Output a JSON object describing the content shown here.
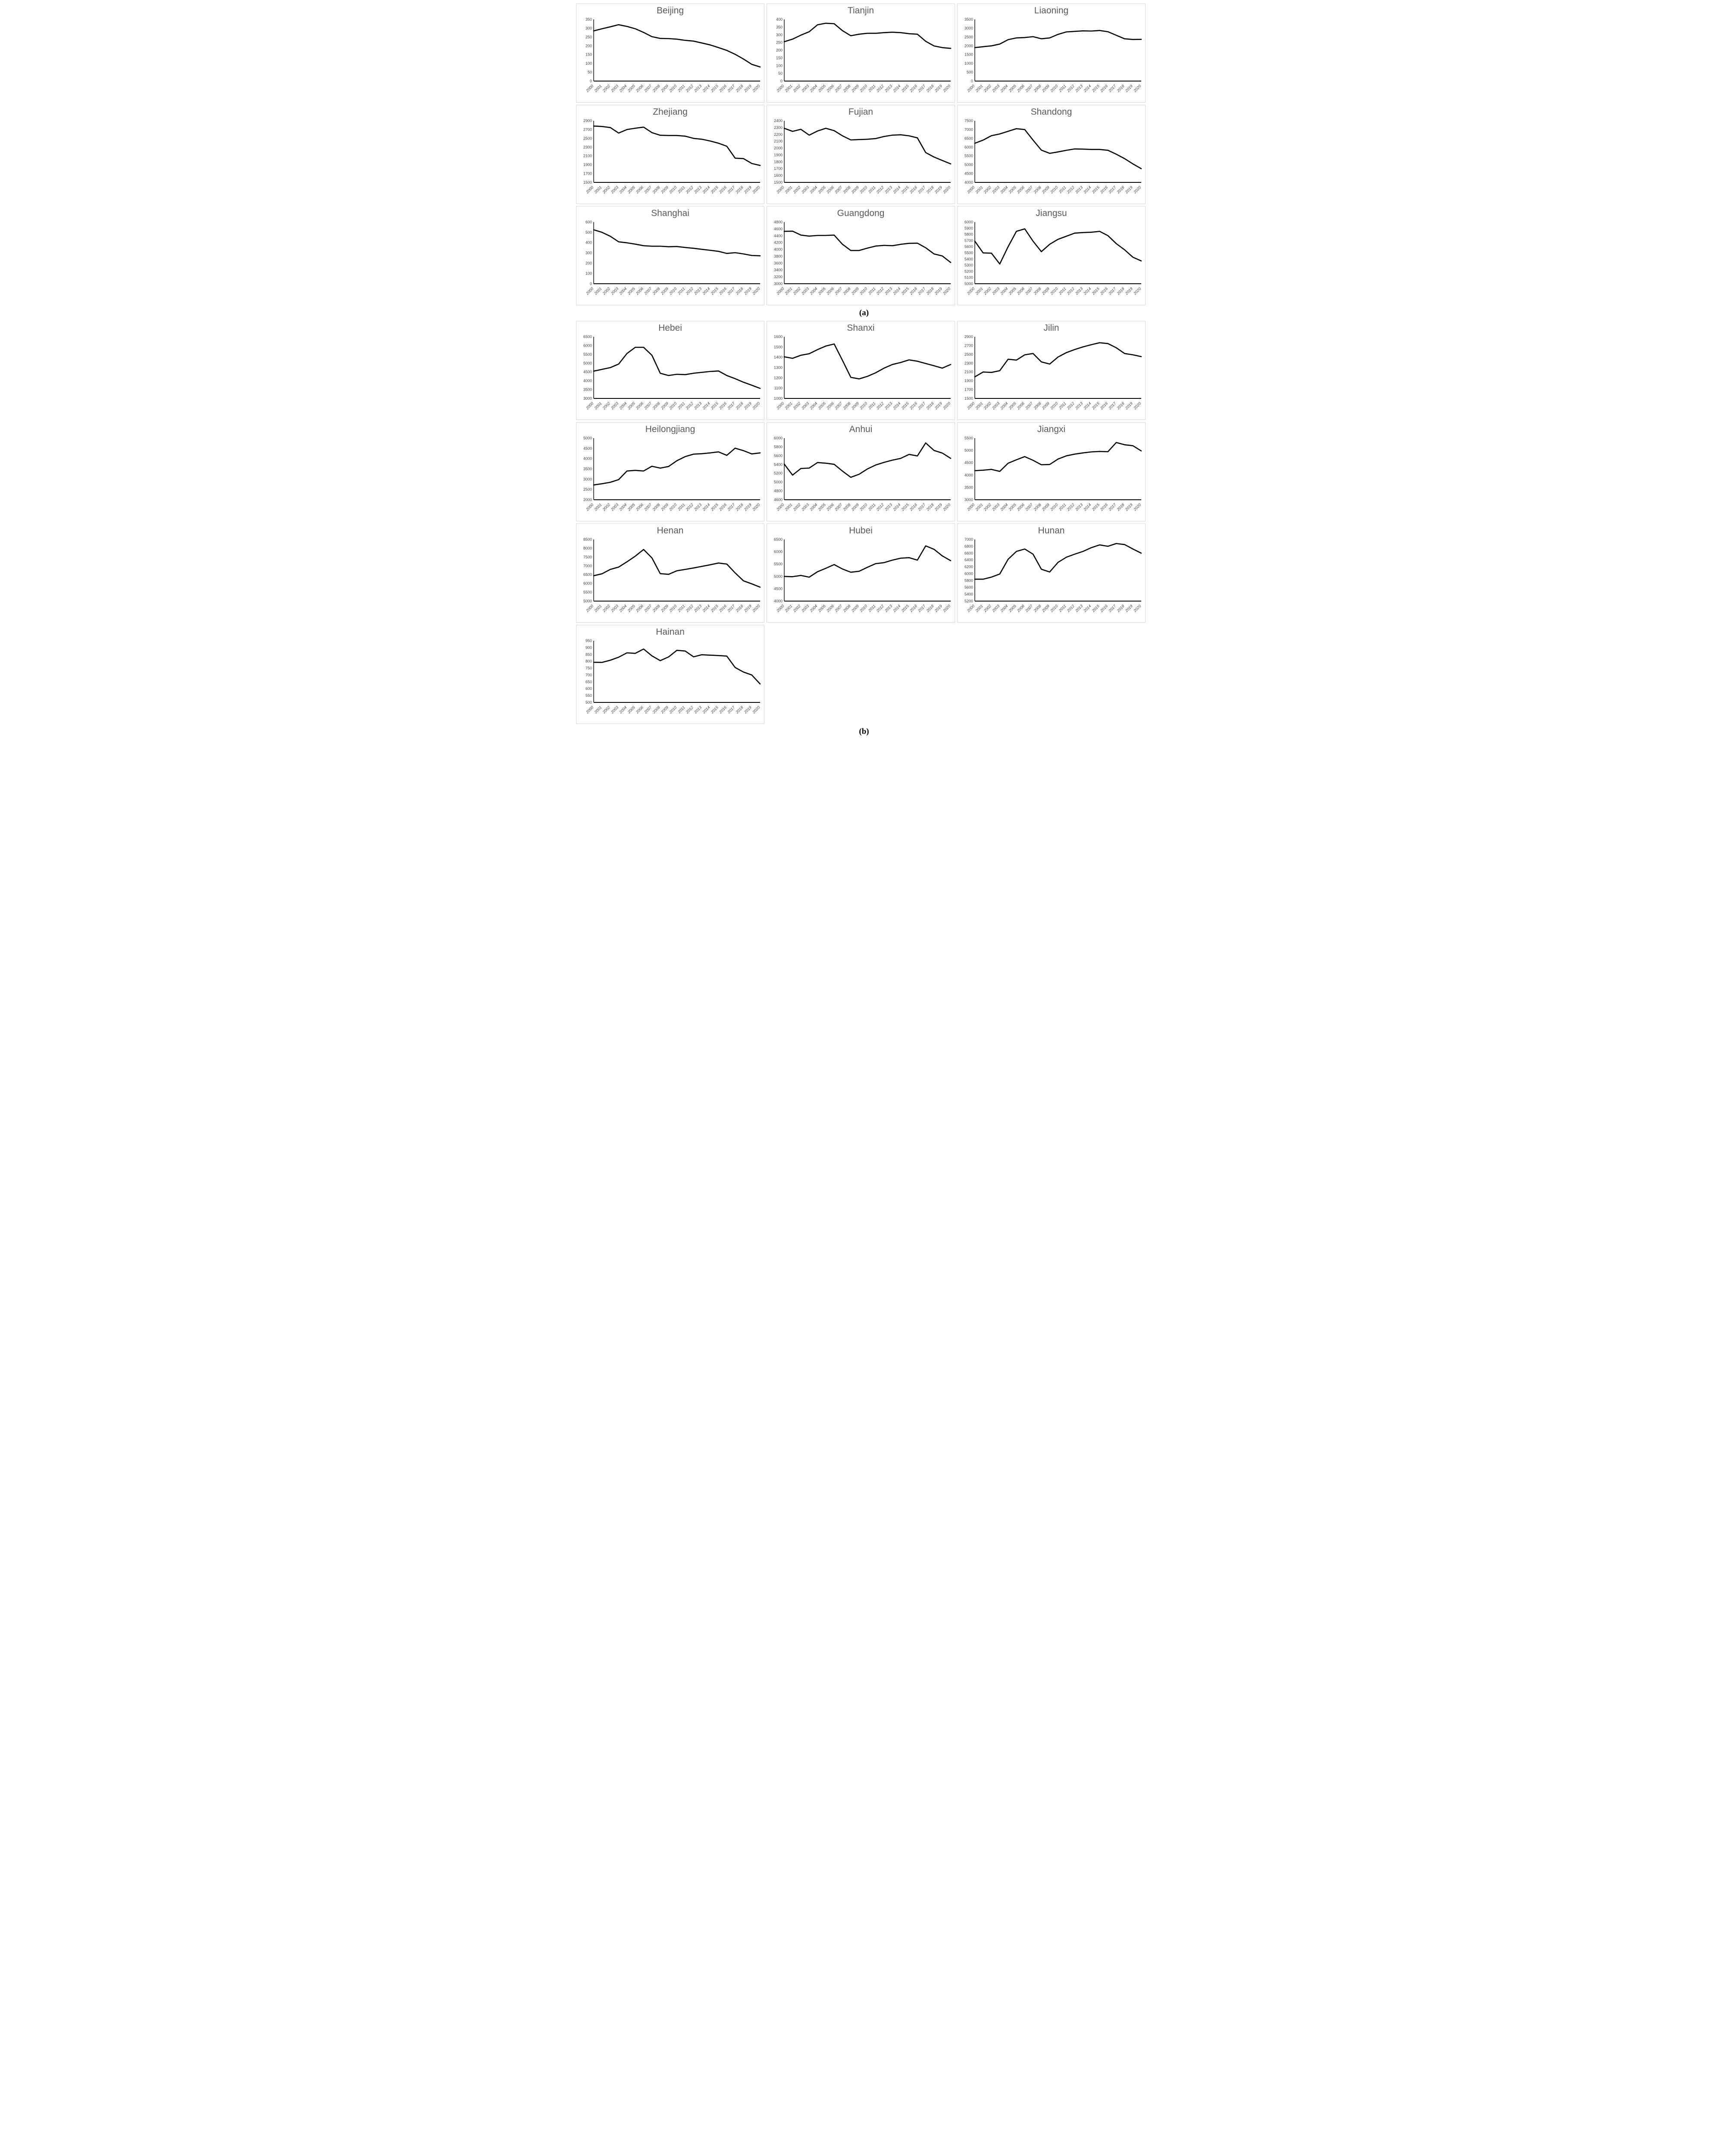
{
  "figure": {
    "panel_a_label": "(a)",
    "panel_b_label": "(b)"
  },
  "colors": {
    "line": "#000000",
    "title": "#595959",
    "axis": "#000000",
    "tick_text": "#404040",
    "box_border": "#d9d9d9",
    "background": "#ffffff"
  },
  "years": [
    2000,
    2001,
    2002,
    2003,
    2004,
    2005,
    2006,
    2007,
    2008,
    2009,
    2010,
    2011,
    2012,
    2013,
    2014,
    2015,
    2016,
    2017,
    2018,
    2019,
    2020
  ],
  "chart_data": [
    {
      "type": "line",
      "panel": "a",
      "title": "Beijing",
      "ylim": [
        0,
        350
      ],
      "ystep": 50,
      "grid": false,
      "legend": "none",
      "values": [
        285,
        297,
        308,
        320,
        310,
        297,
        276,
        252,
        242,
        241,
        238,
        231,
        227,
        216,
        205,
        190,
        174,
        152,
        125,
        95,
        80
      ]
    },
    {
      "type": "line",
      "panel": "a",
      "title": "Tianjin",
      "ylim": [
        0,
        400
      ],
      "ystep": 50,
      "grid": false,
      "legend": "none",
      "values": [
        255,
        272,
        298,
        320,
        365,
        375,
        372,
        327,
        294,
        304,
        310,
        310,
        314,
        317,
        314,
        307,
        304,
        258,
        228,
        217,
        212
      ]
    },
    {
      "type": "line",
      "panel": "a",
      "title": "Liaoning",
      "ylim": [
        0,
        3500
      ],
      "ystep": 500,
      "grid": false,
      "legend": "none",
      "values": [
        1900,
        1950,
        2000,
        2100,
        2350,
        2450,
        2470,
        2520,
        2400,
        2450,
        2650,
        2790,
        2820,
        2850,
        2840,
        2870,
        2800,
        2600,
        2400,
        2360,
        2370
      ]
    },
    {
      "type": "line",
      "panel": "a",
      "title": "Zhejiang",
      "ylim": [
        1500,
        2900
      ],
      "ystep": 200,
      "grid": false,
      "legend": "none",
      "values": [
        2780,
        2770,
        2745,
        2620,
        2700,
        2730,
        2755,
        2630,
        2570,
        2565,
        2565,
        2550,
        2500,
        2480,
        2440,
        2390,
        2320,
        2050,
        2040,
        1930,
        1885
      ]
    },
    {
      "type": "line",
      "panel": "a",
      "title": "Fujian",
      "ylim": [
        1500,
        2400
      ],
      "ystep": 100,
      "grid": false,
      "legend": "none",
      "values": [
        2290,
        2245,
        2275,
        2190,
        2250,
        2290,
        2255,
        2180,
        2120,
        2125,
        2130,
        2140,
        2170,
        2190,
        2195,
        2180,
        2150,
        1935,
        1870,
        1820,
        1770
      ]
    },
    {
      "type": "line",
      "panel": "a",
      "title": "Shandong",
      "ylim": [
        4000,
        7500
      ],
      "ystep": 500,
      "grid": false,
      "legend": "none",
      "values": [
        6220,
        6400,
        6650,
        6750,
        6900,
        7050,
        7000,
        6400,
        5830,
        5650,
        5730,
        5820,
        5900,
        5890,
        5870,
        5870,
        5820,
        5600,
        5350,
        5050,
        4780
      ]
    },
    {
      "type": "line",
      "panel": "a",
      "title": "Shanghai",
      "ylim": [
        0,
        600
      ],
      "ystep": 100,
      "grid": false,
      "legend": "none",
      "values": [
        525,
        500,
        462,
        408,
        398,
        385,
        370,
        365,
        365,
        360,
        362,
        353,
        345,
        335,
        325,
        315,
        295,
        302,
        290,
        275,
        272
      ]
    },
    {
      "type": "line",
      "panel": "a",
      "title": "Guangdong",
      "ylim": [
        3000,
        4800
      ],
      "ystep": 200,
      "grid": false,
      "legend": "none",
      "values": [
        4530,
        4535,
        4420,
        4390,
        4410,
        4410,
        4420,
        4150,
        3970,
        3970,
        4040,
        4100,
        4120,
        4110,
        4150,
        4180,
        4185,
        4050,
        3870,
        3810,
        3620
      ]
    },
    {
      "type": "line",
      "panel": "a",
      "title": "Jiangsu",
      "ylim": [
        5000,
        6000
      ],
      "ystep": 100,
      "grid": false,
      "legend": "none",
      "values": [
        5690,
        5500,
        5495,
        5320,
        5600,
        5850,
        5890,
        5690,
        5520,
        5640,
        5720,
        5770,
        5820,
        5830,
        5835,
        5850,
        5780,
        5650,
        5550,
        5430,
        5370
      ]
    },
    {
      "type": "line",
      "panel": "b",
      "title": "Hebei",
      "ylim": [
        3000,
        6500
      ],
      "ystep": 500,
      "grid": false,
      "legend": "none",
      "values": [
        4550,
        4650,
        4750,
        4950,
        5550,
        5900,
        5900,
        5450,
        4430,
        4300,
        4370,
        4350,
        4430,
        4480,
        4530,
        4560,
        4300,
        4120,
        3920,
        3750,
        3570
      ]
    },
    {
      "type": "line",
      "panel": "b",
      "title": "Shanxi",
      "ylim": [
        1000,
        1600
      ],
      "ystep": 100,
      "grid": false,
      "legend": "none",
      "values": [
        1405,
        1390,
        1420,
        1435,
        1475,
        1510,
        1530,
        1370,
        1205,
        1190,
        1215,
        1250,
        1295,
        1330,
        1350,
        1375,
        1362,
        1340,
        1318,
        1295,
        1330
      ]
    },
    {
      "type": "line",
      "panel": "b",
      "title": "Jilin",
      "ylim": [
        1500,
        2900
      ],
      "ystep": 200,
      "grid": false,
      "legend": "none",
      "values": [
        1990,
        2100,
        2090,
        2130,
        2390,
        2370,
        2490,
        2520,
        2330,
        2280,
        2440,
        2540,
        2610,
        2670,
        2720,
        2765,
        2745,
        2650,
        2520,
        2490,
        2450
      ]
    },
    {
      "type": "line",
      "panel": "b",
      "title": "Heilongjiang",
      "ylim": [
        2000,
        5000
      ],
      "ystep": 500,
      "grid": false,
      "legend": "none",
      "values": [
        2720,
        2780,
        2850,
        2980,
        3400,
        3430,
        3400,
        3630,
        3540,
        3620,
        3900,
        4100,
        4220,
        4240,
        4280,
        4330,
        4160,
        4510,
        4390,
        4230,
        4280
      ]
    },
    {
      "type": "line",
      "panel": "b",
      "title": "Anhui",
      "ylim": [
        4600,
        6000
      ],
      "ystep": 200,
      "grid": false,
      "legend": "none",
      "values": [
        5410,
        5160,
        5310,
        5320,
        5445,
        5430,
        5405,
        5250,
        5110,
        5180,
        5300,
        5390,
        5450,
        5500,
        5540,
        5630,
        5595,
        5890,
        5720,
        5660,
        5540
      ]
    },
    {
      "type": "line",
      "panel": "b",
      "title": "Jiangxi",
      "ylim": [
        3000,
        5500
      ],
      "ystep": 500,
      "grid": false,
      "legend": "none",
      "values": [
        4180,
        4200,
        4230,
        4150,
        4480,
        4620,
        4750,
        4600,
        4420,
        4430,
        4650,
        4780,
        4850,
        4900,
        4940,
        4960,
        4950,
        5320,
        5230,
        5190,
        4980
      ]
    },
    {
      "type": "line",
      "panel": "b",
      "title": "Henan",
      "ylim": [
        5000,
        8500
      ],
      "ystep": 500,
      "grid": false,
      "legend": "none",
      "values": [
        6440,
        6550,
        6800,
        6930,
        7230,
        7550,
        7930,
        7450,
        6560,
        6520,
        6720,
        6800,
        6880,
        6970,
        7060,
        7160,
        7100,
        6600,
        6150,
        5980,
        5790
      ]
    },
    {
      "type": "line",
      "panel": "b",
      "title": "Hubei",
      "ylim": [
        4000,
        6500
      ],
      "ystep": 500,
      "grid": false,
      "legend": "none",
      "values": [
        5000,
        4990,
        5040,
        4970,
        5190,
        5330,
        5480,
        5300,
        5170,
        5210,
        5370,
        5520,
        5560,
        5660,
        5740,
        5760,
        5660,
        6240,
        6100,
        5830,
        5640
      ]
    },
    {
      "type": "line",
      "panel": "b",
      "title": "Hunan",
      "ylim": [
        5200,
        7000
      ],
      "ystep": 200,
      "grid": false,
      "legend": "none",
      "values": [
        5840,
        5840,
        5900,
        5990,
        6420,
        6650,
        6720,
        6570,
        6130,
        6050,
        6330,
        6480,
        6570,
        6650,
        6760,
        6840,
        6800,
        6880,
        6850,
        6720,
        6600
      ]
    },
    {
      "type": "line",
      "panel": "b",
      "title": "Hainan",
      "ylim": [
        500,
        950
      ],
      "ystep": 50,
      "grid": false,
      "legend": "none",
      "values": [
        793,
        792,
        808,
        830,
        862,
        858,
        890,
        840,
        805,
        832,
        880,
        875,
        833,
        848,
        845,
        842,
        838,
        755,
        722,
        700,
        635
      ]
    }
  ]
}
